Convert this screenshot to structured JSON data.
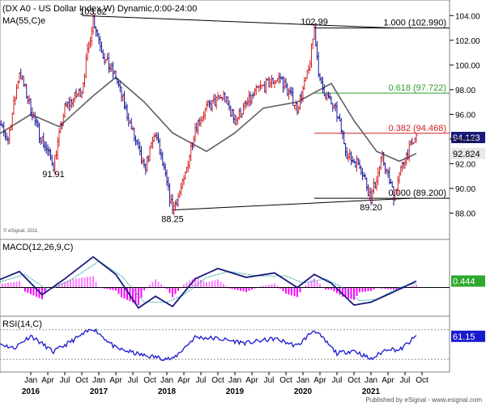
{
  "chart_data": [
    {
      "type": "bar",
      "title": "(DX A0 - US Dollar Index,W) Dynamic,0:00-24:00",
      "overlay_label": "MA(55,C)e",
      "watermark": "© eSignal, 2011",
      "ylim": [
        86,
        105
      ],
      "yticks": [
        88.0,
        90.0,
        92.0,
        94.0,
        96.0,
        98.0,
        100.0,
        102.0,
        104.0
      ],
      "ytick_labels": [
        "88.00",
        "90.00",
        "92.00",
        "94.00",
        "96.00",
        "98.00",
        "100.00",
        "102.00",
        "104.00"
      ],
      "price_path": [
        [
          "2015-06",
          96.0
        ],
        [
          "2015-09",
          94.0
        ],
        [
          "2015-11",
          99.5
        ],
        [
          "2016-02",
          95.0
        ],
        [
          "2016-05",
          91.91
        ],
        [
          "2016-07",
          96.5
        ],
        [
          "2016-10",
          98.0
        ],
        [
          "2016-12",
          103.82
        ],
        [
          "2017-02",
          100.5
        ],
        [
          "2017-04",
          99.0
        ],
        [
          "2017-06",
          96.0
        ],
        [
          "2017-09",
          91.5
        ],
        [
          "2017-11",
          94.5
        ],
        [
          "2018-02",
          88.25
        ],
        [
          "2018-04",
          90.5
        ],
        [
          "2018-06",
          95.0
        ],
        [
          "2018-08",
          96.5
        ],
        [
          "2018-11",
          97.5
        ],
        [
          "2019-01",
          95.5
        ],
        [
          "2019-05",
          98.0
        ],
        [
          "2019-09",
          99.0
        ],
        [
          "2019-12",
          96.5
        ],
        [
          "2020-02",
          99.5
        ],
        [
          "2020-03",
          102.99
        ],
        [
          "2020-04",
          98.5
        ],
        [
          "2020-07",
          96.0
        ],
        [
          "2020-09",
          92.5
        ],
        [
          "2020-11",
          92.0
        ],
        [
          "2021-01",
          89.2
        ],
        [
          "2021-03",
          92.5
        ],
        [
          "2021-05",
          89.5
        ],
        [
          "2021-07",
          92.5
        ],
        [
          "2021-09",
          94.123
        ]
      ],
      "ma55_path": [
        [
          "2015-06",
          94.0
        ],
        [
          "2016-01",
          96.0
        ],
        [
          "2016-06",
          95.0
        ],
        [
          "2016-12",
          97.5
        ],
        [
          "2017-04",
          99.0
        ],
        [
          "2017-09",
          97.0
        ],
        [
          "2018-02",
          94.5
        ],
        [
          "2018-08",
          93.0
        ],
        [
          "2019-01",
          94.5
        ],
        [
          "2019-06",
          96.5
        ],
        [
          "2019-12",
          97.0
        ],
        [
          "2020-06",
          98.5
        ],
        [
          "2020-10",
          95.5
        ],
        [
          "2021-02",
          93.0
        ],
        [
          "2021-06",
          92.2
        ],
        [
          "2021-09",
          92.824
        ]
      ],
      "trendlines": [
        [
          [
            "2016-10",
            104.0
          ],
          [
            "2021-05",
            102.99
          ]
        ],
        [
          [
            "2018-02",
            88.25
          ],
          [
            "2021-08",
            89.2
          ]
        ]
      ],
      "fib_levels": [
        {
          "label": "1.000 (102.990)",
          "value": 102.99,
          "color": "#000000"
        },
        {
          "label": "0.618 (97.722)",
          "value": 97.722,
          "color": "#2e9e2e"
        },
        {
          "label": "0.382 (94.468)",
          "value": 94.468,
          "color": "#d02020"
        },
        {
          "label": "0.000 (89.200)",
          "value": 89.2,
          "color": "#000000"
        }
      ],
      "annotations": [
        {
          "text": "103.82",
          "at": [
            "2016-12",
            103.82
          ],
          "pos": "top"
        },
        {
          "text": "91.91",
          "at": [
            "2016-05",
            91.91
          ],
          "pos": "bottom"
        },
        {
          "text": "88.25",
          "at": [
            "2018-02",
            88.25
          ],
          "pos": "bottom"
        },
        {
          "text": "102.99",
          "at": [
            "2020-03",
            102.99
          ],
          "pos": "top"
        },
        {
          "text": "89.20",
          "at": [
            "2021-01",
            89.2
          ],
          "pos": "bottom"
        }
      ],
      "last_price": {
        "label": "94.123",
        "value": 94.123
      },
      "ma_value": {
        "label": "92.824",
        "value": 92.824
      }
    },
    {
      "type": "line",
      "title": "MACD(12,26,9,C)",
      "ylim": [
        -1.8,
        2.3
      ],
      "series": [
        {
          "name": "MACD",
          "color": "#1a1a7a",
          "values": [
            [
              "2015-06",
              0.3
            ],
            [
              "2015-11",
              1.1
            ],
            [
              "2016-03",
              -0.5
            ],
            [
              "2016-07",
              0.6
            ],
            [
              "2016-12",
              2.1
            ],
            [
              "2017-04",
              0.9
            ],
            [
              "2017-08",
              -1.4
            ],
            [
              "2017-11",
              -0.6
            ],
            [
              "2018-02",
              -1.3
            ],
            [
              "2018-06",
              0.6
            ],
            [
              "2018-10",
              1.3
            ],
            [
              "2019-03",
              0.7
            ],
            [
              "2019-08",
              1.0
            ],
            [
              "2019-12",
              0.0
            ],
            [
              "2020-03",
              0.9
            ],
            [
              "2020-06",
              0.3
            ],
            [
              "2020-10",
              -1.2
            ],
            [
              "2021-01",
              -1.0
            ],
            [
              "2021-05",
              -0.3
            ],
            [
              "2021-09",
              0.444
            ]
          ]
        },
        {
          "name": "Signal",
          "color": "#2ea8a8",
          "values": [
            [
              "2015-06",
              0.2
            ],
            [
              "2015-12",
              0.9
            ],
            [
              "2016-04",
              -0.2
            ],
            [
              "2016-08",
              0.5
            ],
            [
              "2017-01",
              1.8
            ],
            [
              "2017-05",
              0.8
            ],
            [
              "2017-09",
              -1.0
            ],
            [
              "2018-01",
              -1.0
            ],
            [
              "2018-04",
              -0.5
            ],
            [
              "2018-08",
              0.7
            ],
            [
              "2018-12",
              1.1
            ],
            [
              "2019-05",
              0.8
            ],
            [
              "2019-10",
              0.8
            ],
            [
              "2020-01",
              0.3
            ],
            [
              "2020-05",
              0.6
            ],
            [
              "2020-08",
              0.0
            ],
            [
              "2020-11",
              -0.9
            ],
            [
              "2021-02",
              -0.8
            ],
            [
              "2021-06",
              0.0
            ],
            [
              "2021-09",
              0.3
            ]
          ]
        }
      ],
      "histogram": {
        "positive_color": "#ff7fff",
        "negative_color": "#ff00ff"
      },
      "last_value": {
        "label": "0.444",
        "value": 0.444
      }
    },
    {
      "type": "line",
      "title": "RSI(14,C)",
      "ylim": [
        15,
        85
      ],
      "reference_levels": [
        70,
        30
      ],
      "series": [
        {
          "name": "RSI",
          "color": "#1a1acd",
          "values": [
            [
              "2015-06",
              55
            ],
            [
              "2015-10",
              45
            ],
            [
              "2016-01",
              62
            ],
            [
              "2016-05",
              40
            ],
            [
              "2016-12",
              72
            ],
            [
              "2017-04",
              45
            ],
            [
              "2017-09",
              35
            ],
            [
              "2018-02",
              30
            ],
            [
              "2018-06",
              60
            ],
            [
              "2018-10",
              58
            ],
            [
              "2019-03",
              52
            ],
            [
              "2019-08",
              58
            ],
            [
              "2019-12",
              48
            ],
            [
              "2020-03",
              70
            ],
            [
              "2020-07",
              38
            ],
            [
              "2020-10",
              42
            ],
            [
              "2021-01",
              30
            ],
            [
              "2021-04",
              45
            ],
            [
              "2021-06",
              42
            ],
            [
              "2021-09",
              61.15
            ]
          ]
        }
      ],
      "last_value": {
        "label": "61.15",
        "value": 61.15
      }
    }
  ],
  "x_axis": {
    "month_labels": [
      [
        "2016-01",
        "Jan"
      ],
      [
        "2016-04",
        "Apr"
      ],
      [
        "2016-07",
        "Jul"
      ],
      [
        "2016-10",
        "Oct"
      ],
      [
        "2017-01",
        "Jan"
      ],
      [
        "2017-04",
        "Apr"
      ],
      [
        "2017-07",
        "Jul"
      ],
      [
        "2017-10",
        "Oct"
      ],
      [
        "2018-01",
        "Jan"
      ],
      [
        "2018-04",
        "Apr"
      ],
      [
        "2018-07",
        "Jul"
      ],
      [
        "2018-10",
        "Oct"
      ],
      [
        "2019-01",
        "Jan"
      ],
      [
        "2019-04",
        "Apr"
      ],
      [
        "2019-07",
        "Jul"
      ],
      [
        "2019-10",
        "Oct"
      ],
      [
        "2020-01",
        "Jan"
      ],
      [
        "2020-04",
        "Apr"
      ],
      [
        "2020-07",
        "Jul"
      ],
      [
        "2020-10",
        "Oct"
      ],
      [
        "2021-01",
        "Jan"
      ],
      [
        "2021-04",
        "Apr"
      ],
      [
        "2021-07",
        "Jul"
      ],
      [
        "2021-10",
        "Oct"
      ]
    ],
    "year_labels": [
      [
        "2016-01",
        "2016"
      ],
      [
        "2017-01",
        "2017"
      ],
      [
        "2018-01",
        "2018"
      ],
      [
        "2019-01",
        "2019"
      ],
      [
        "2020-01",
        "2020"
      ],
      [
        "2021-01",
        "2021"
      ]
    ]
  },
  "footer": {
    "text": "Published by eSignal - www.esignal.com"
  },
  "colors": {
    "background": "#ffffff",
    "up_bar": "#d42020",
    "down_bar": "#1a1a9a",
    "ma": "#606060",
    "axis": "#000000"
  }
}
